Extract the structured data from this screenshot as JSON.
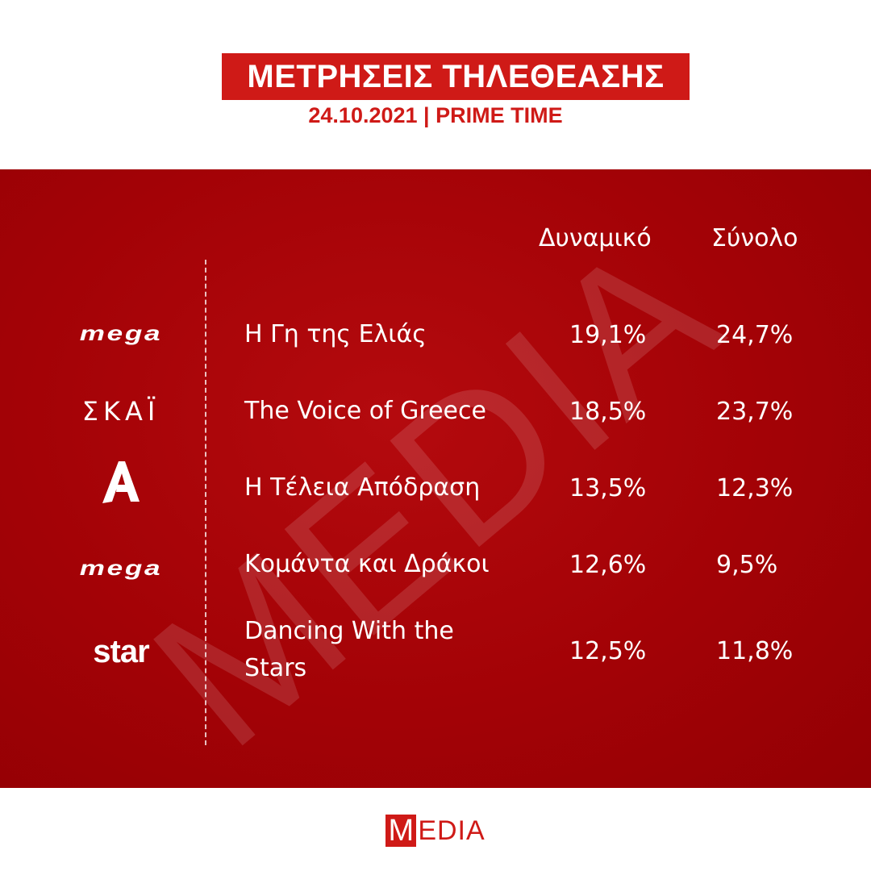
{
  "header": {
    "title": "ΜΕΤΡΗΣΕΙΣ ΤΗΛΕΘΕΑΣΗΣ",
    "subtitle": "24.10.2021 | PRIME TIME"
  },
  "table": {
    "columns": {
      "potential": "Δυναμικό",
      "total": "Σύνολο"
    },
    "rows": [
      {
        "channel_logo": "mega-logo",
        "channel_text": "mega",
        "show": "Η Γη της Ελιάς",
        "potential": "19,1%",
        "total": "24,7%"
      },
      {
        "channel_logo": "skai-logo",
        "channel_text": "ΣΚΑΪ",
        "show": "The Voice of Greece",
        "potential": "18,5%",
        "total": "23,7%"
      },
      {
        "channel_logo": "alpha-logo",
        "channel_text": "",
        "show": "Η Τέλεια Απόδραση",
        "potential": "13,5%",
        "total": "12,3%"
      },
      {
        "channel_logo": "mega-logo",
        "channel_text": "mega",
        "show": "Κομάντα και Δράκοι",
        "potential": "12,6%",
        "total": "9,5%"
      },
      {
        "channel_logo": "star-logo",
        "channel_text": "star",
        "show": "Dancing With the Stars",
        "potential": "12,5%",
        "total": "11,8%"
      }
    ]
  },
  "watermark": "MEDIA",
  "footer": {
    "brand_first": "M",
    "brand_rest": "EDIA"
  },
  "colors": {
    "accent": "#cf1a17",
    "panel": "#a30206",
    "text_light": "#ffffff"
  }
}
